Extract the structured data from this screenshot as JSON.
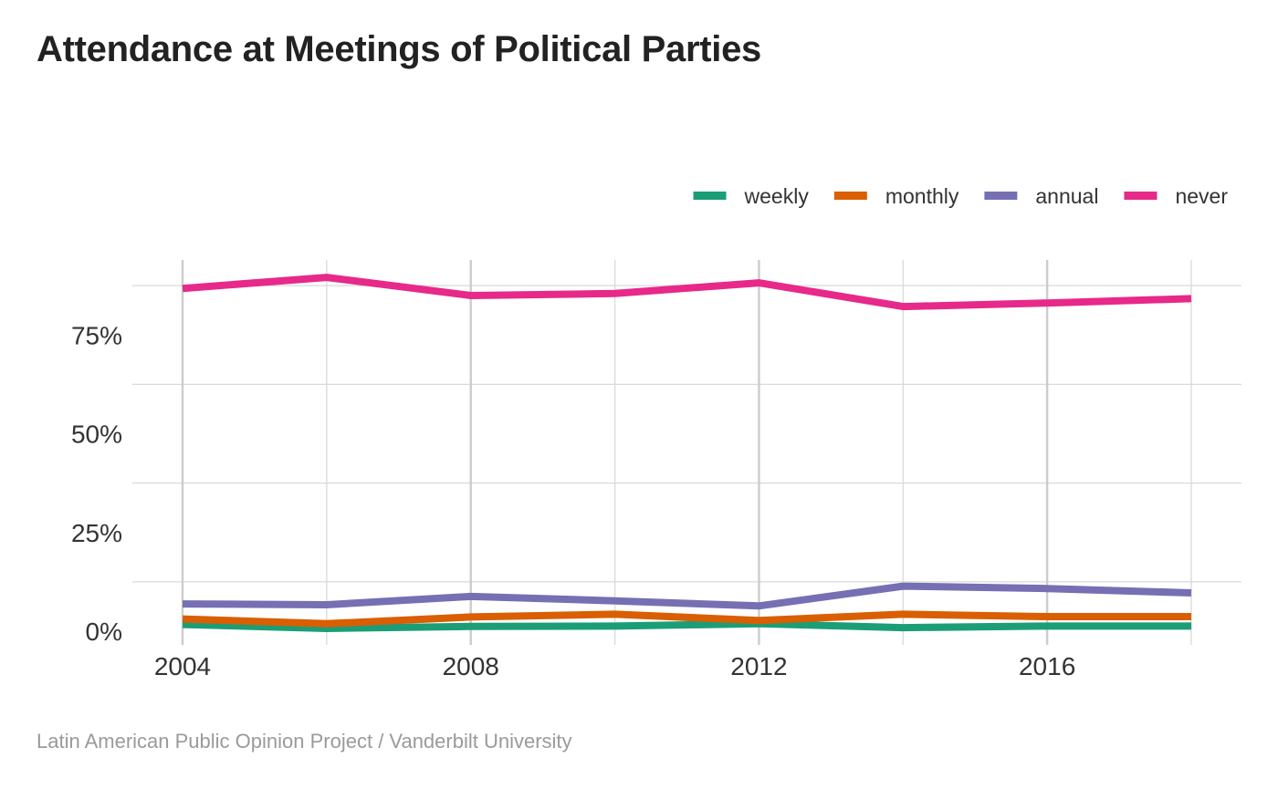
{
  "page": {
    "title": "Attendance at Meetings of Political Parties",
    "caption": "Latin American Public Opinion Project / Vanderbilt University"
  },
  "chart_data": {
    "type": "line",
    "title": "Attendance at Meetings of Political Parties",
    "xlabel": "",
    "ylabel": "",
    "x": [
      2004,
      2006,
      2008,
      2010,
      2012,
      2014,
      2016,
      2018
    ],
    "xlim": [
      2004,
      2018
    ],
    "ylim": [
      0,
      0.94
    ],
    "x_ticks": [
      2004,
      2008,
      2012,
      2016
    ],
    "x_tick_labels": [
      "2004",
      "2008",
      "2012",
      "2016"
    ],
    "y_ticks": [
      0,
      0.25,
      0.5,
      0.75
    ],
    "y_tick_labels": [
      "0%",
      "25%",
      "50%",
      "75%"
    ],
    "grid": true,
    "legend_position": "top-right",
    "series": [
      {
        "name": "weekly",
        "color": "#1b9e77",
        "values": [
          0.017,
          0.007,
          0.012,
          0.013,
          0.019,
          0.009,
          0.013,
          0.013
        ]
      },
      {
        "name": "monthly",
        "color": "#d95f02",
        "values": [
          0.031,
          0.019,
          0.036,
          0.043,
          0.027,
          0.043,
          0.037,
          0.037
        ]
      },
      {
        "name": "annual",
        "color": "#7570b3",
        "values": [
          0.069,
          0.067,
          0.088,
          0.077,
          0.064,
          0.114,
          0.108,
          0.097
        ]
      },
      {
        "name": "never",
        "color": "#e7298a",
        "values": [
          0.868,
          0.896,
          0.85,
          0.855,
          0.882,
          0.822,
          0.831,
          0.842
        ]
      }
    ]
  }
}
